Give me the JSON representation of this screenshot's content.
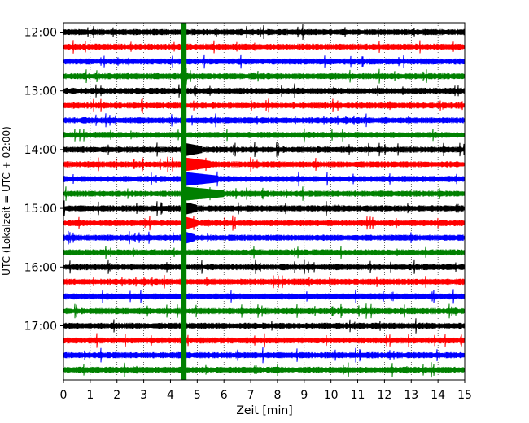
{
  "chart_data": {
    "type": "line",
    "title": "",
    "xlabel": "Zeit  [min]",
    "ylabel": "UTC (Lokalzeit = UTC + 02:00)",
    "xlim": [
      0,
      15
    ],
    "x_ticks": [
      "0",
      "1",
      "2",
      "3",
      "4",
      "5",
      "6",
      "7",
      "8",
      "9",
      "10",
      "11",
      "12",
      "13",
      "14",
      "15"
    ],
    "y_ticks": [
      "12:00",
      "13:00",
      "14:00",
      "15:00",
      "16:00",
      "17:00"
    ],
    "grid": "vertical dotted",
    "trace_colors": [
      "#000000",
      "#ff0000",
      "#0000ff",
      "#008000"
    ],
    "series": [
      {
        "start": "12:00",
        "color": "#000000"
      },
      {
        "start": "12:15",
        "color": "#ff0000"
      },
      {
        "start": "12:30",
        "color": "#0000ff"
      },
      {
        "start": "12:45",
        "color": "#008000"
      },
      {
        "start": "13:00",
        "color": "#000000"
      },
      {
        "start": "13:15",
        "color": "#ff0000"
      },
      {
        "start": "13:30",
        "color": "#0000ff"
      },
      {
        "start": "13:45",
        "color": "#008000"
      },
      {
        "start": "14:00",
        "color": "#000000"
      },
      {
        "start": "14:15",
        "color": "#ff0000"
      },
      {
        "start": "14:30",
        "color": "#0000ff"
      },
      {
        "start": "14:45",
        "color": "#008000"
      },
      {
        "start": "15:00",
        "color": "#000000"
      },
      {
        "start": "15:15",
        "color": "#ff0000"
      },
      {
        "start": "15:30",
        "color": "#0000ff"
      },
      {
        "start": "15:45",
        "color": "#008000"
      },
      {
        "start": "16:00",
        "color": "#000000"
      },
      {
        "start": "16:15",
        "color": "#ff0000"
      },
      {
        "start": "16:30",
        "color": "#0000ff"
      },
      {
        "start": "16:45",
        "color": "#008000"
      },
      {
        "start": "17:00",
        "color": "#000000"
      },
      {
        "start": "17:15",
        "color": "#ff0000"
      },
      {
        "start": "17:30",
        "color": "#0000ff"
      },
      {
        "start": "17:45",
        "color": "#008000"
      }
    ],
    "events": [
      {
        "start": "12:45",
        "x_min": [
          4.4,
          4.6
        ],
        "kind": "saturated"
      },
      {
        "start": "14:00",
        "x_min": [
          4.4,
          5.2
        ],
        "kind": "earthquake"
      },
      {
        "start": "14:15",
        "x_min": [
          4.4,
          5.5
        ],
        "kind": "earthquake"
      },
      {
        "start": "14:30",
        "x_min": [
          4.4,
          5.8
        ],
        "kind": "earthquake"
      },
      {
        "start": "14:45",
        "x_min": [
          4.4,
          6.0
        ],
        "kind": "earthquake"
      },
      {
        "start": "15:00",
        "x_min": [
          4.4,
          5.0
        ],
        "kind": "earthquake"
      },
      {
        "start": "15:15",
        "x_min": [
          4.4,
          5.0
        ],
        "kind": "earthquake"
      },
      {
        "start": "15:30",
        "x_min": [
          4.4,
          4.9
        ],
        "kind": "earthquake"
      }
    ]
  }
}
